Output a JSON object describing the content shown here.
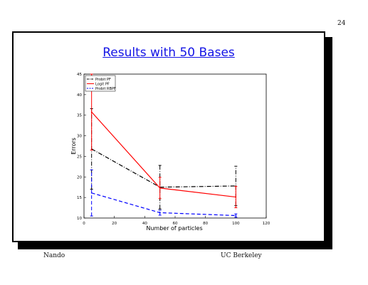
{
  "page_number": "24",
  "slide_title": "Results with 50 Bases",
  "footer": {
    "left": "Nando",
    "right": "UC Berkeley"
  },
  "chart_data": {
    "type": "line",
    "xlabel": "Number of particles",
    "ylabel": "Errors",
    "xlim": [
      0,
      120
    ],
    "ylim": [
      10,
      45
    ],
    "xticks": [
      0,
      20,
      40,
      60,
      80,
      100,
      120
    ],
    "yticks": [
      10,
      15,
      20,
      25,
      30,
      35,
      40,
      45
    ],
    "grid": false,
    "legend_position": "top-left",
    "x": [
      5,
      50,
      100
    ],
    "series": [
      {
        "name": "Probit PF",
        "color": "#000000",
        "dash": "6,2,1,2",
        "values": [
          26.8,
          17.5,
          17.8
        ],
        "error": [
          [
            17.0,
            36.6
          ],
          [
            12.2,
            22.8
          ],
          [
            13.0,
            22.6
          ]
        ]
      },
      {
        "name": "Logit PF",
        "color": "#ff0000",
        "dash": "",
        "values": [
          35.8,
          17.3,
          15.1
        ],
        "error": [
          [
            26.5,
            45.0
          ],
          [
            14.7,
            19.9
          ],
          [
            12.5,
            17.7
          ]
        ]
      },
      {
        "name": "Probit RBPF",
        "color": "#0000ff",
        "dash": "5,3",
        "values": [
          16.1,
          11.3,
          10.6
        ],
        "error": [
          [
            10.5,
            21.7
          ],
          [
            10.7,
            11.9
          ],
          [
            10.2,
            11.0
          ]
        ]
      }
    ]
  }
}
